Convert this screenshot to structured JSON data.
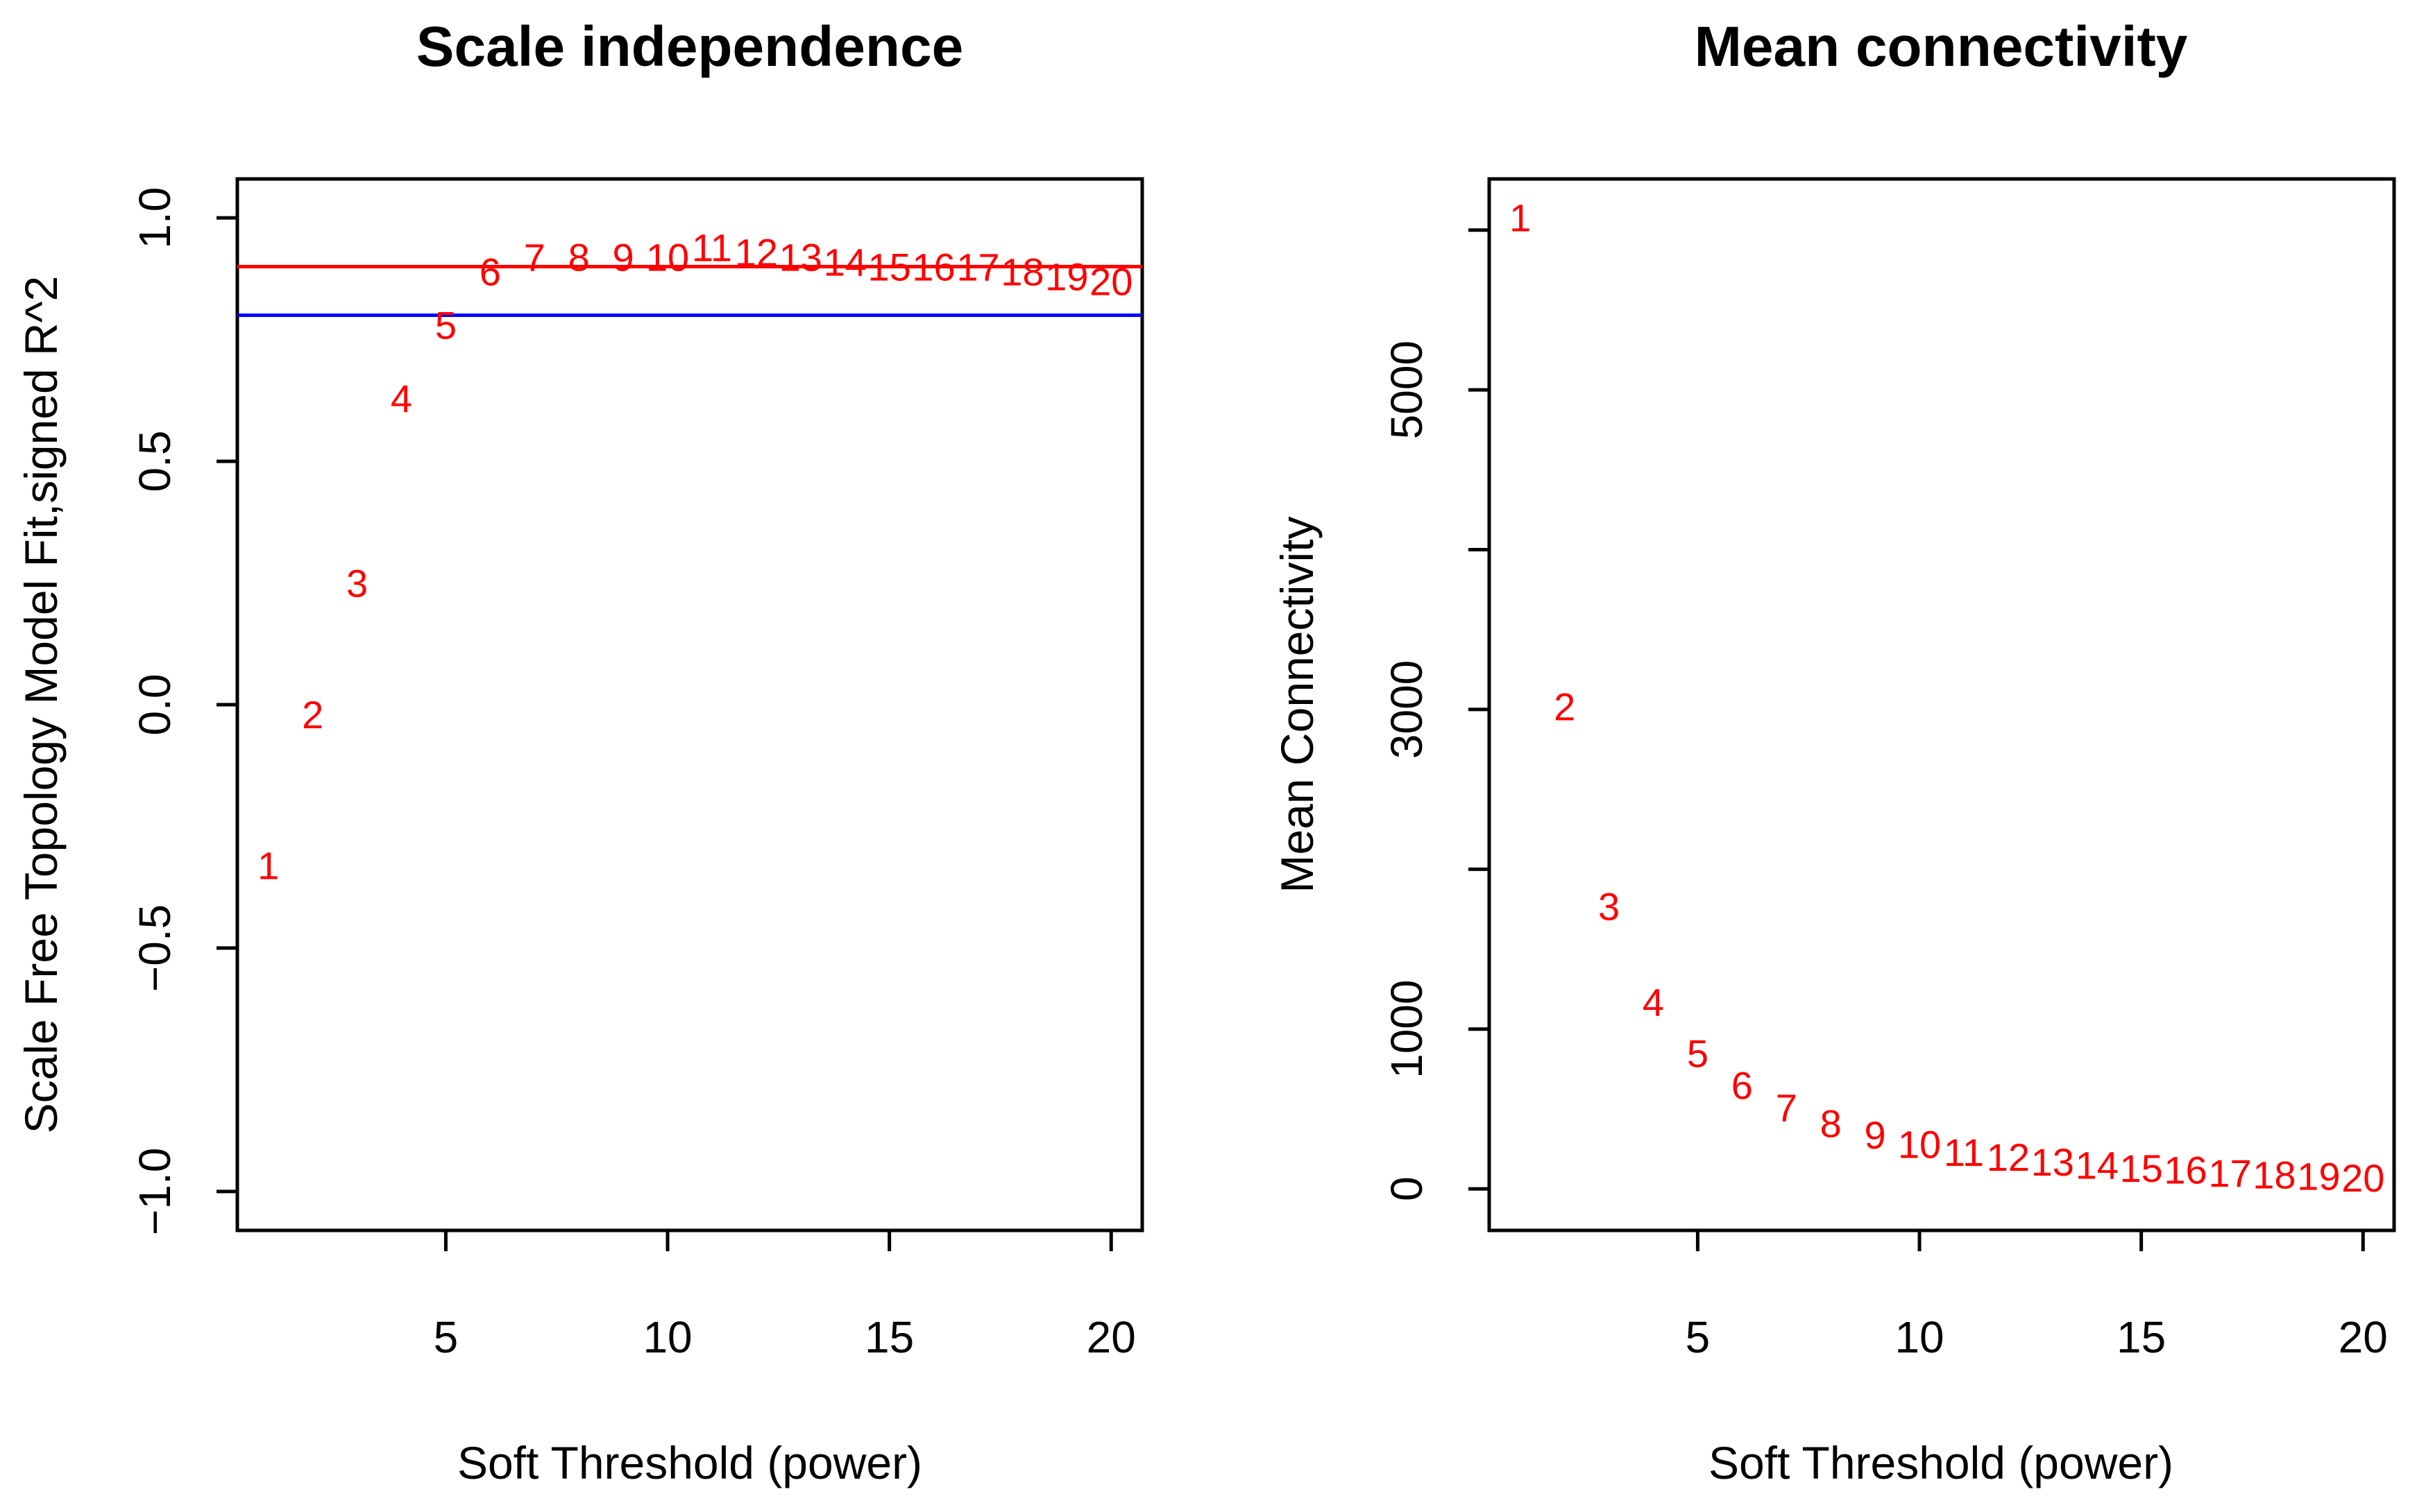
{
  "chart_data": [
    {
      "type": "scatter",
      "title": "Scale independence",
      "xlabel": "Soft Threshold (power)",
      "ylabel": "Scale Free Topology Model Fit,signed R^2",
      "xlim": [
        0.3,
        20.7
      ],
      "ylim": [
        -1.08,
        1.08
      ],
      "x_ticks": [
        5,
        10,
        15,
        20
      ],
      "x_tick_labels": [
        "5",
        "10",
        "15",
        "20"
      ],
      "y_ticks": [
        -1.0,
        -0.5,
        0.0,
        0.5,
        1.0
      ],
      "y_tick_labels": [
        "−1.0",
        "−0.5",
        "0.0",
        "0.5",
        "1.0"
      ],
      "marker": "text",
      "x": [
        1,
        2,
        3,
        4,
        5,
        6,
        7,
        8,
        9,
        10,
        11,
        12,
        13,
        14,
        15,
        16,
        17,
        18,
        19,
        20
      ],
      "y": [
        -0.33,
        -0.02,
        0.25,
        0.63,
        0.78,
        0.89,
        0.92,
        0.92,
        0.92,
        0.92,
        0.94,
        0.93,
        0.92,
        0.91,
        0.9,
        0.9,
        0.9,
        0.89,
        0.88,
        0.87
      ],
      "point_labels": [
        "1",
        "2",
        "3",
        "4",
        "5",
        "6",
        "7",
        "8",
        "9",
        "10",
        "11",
        "12",
        "13",
        "14",
        "15",
        "16",
        "17",
        "18",
        "19",
        "20"
      ],
      "hlines": [
        {
          "y": 0.9,
          "color": "#ff0000"
        },
        {
          "y": 0.8,
          "color": "#0000ff"
        }
      ],
      "point_color": "#ff0000"
    },
    {
      "type": "scatter",
      "title": "Mean connectivity",
      "xlabel": "Soft Threshold (power)",
      "ylabel": "Mean Connectivity",
      "xlim": [
        0.3,
        20.7
      ],
      "ylim": [
        -260,
        6320
      ],
      "x_ticks": [
        5,
        10,
        15,
        20
      ],
      "x_tick_labels": [
        "5",
        "10",
        "15",
        "20"
      ],
      "y_ticks": [
        0,
        1000,
        2000,
        3000,
        4000,
        5000,
        6000
      ],
      "y_tick_labels": [
        "0",
        "1000",
        "",
        "3000",
        "",
        "5000",
        ""
      ],
      "marker": "text",
      "x": [
        1,
        2,
        3,
        4,
        5,
        6,
        7,
        8,
        9,
        10,
        11,
        12,
        13,
        14,
        15,
        16,
        17,
        18,
        19,
        20
      ],
      "y": [
        6080,
        3020,
        1770,
        1170,
        850,
        650,
        510,
        410,
        340,
        280,
        230,
        200,
        170,
        150,
        130,
        120,
        100,
        90,
        80,
        70
      ],
      "point_labels": [
        "1",
        "2",
        "3",
        "4",
        "5",
        "6",
        "7",
        "8",
        "9",
        "10",
        "11",
        "12",
        "13",
        "14",
        "15",
        "16",
        "17",
        "18",
        "19",
        "20"
      ],
      "point_color": "#ff0000"
    }
  ]
}
